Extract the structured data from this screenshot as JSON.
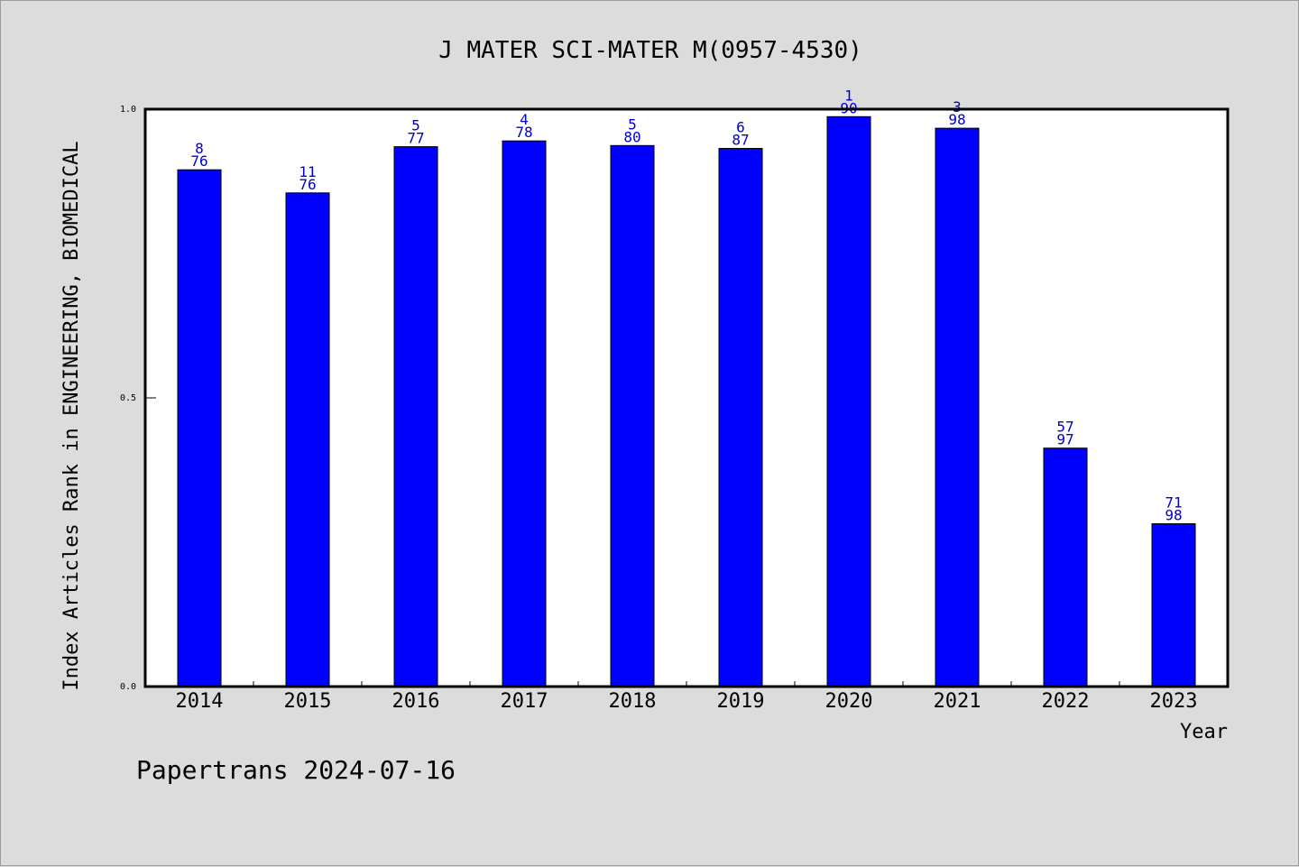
{
  "footer": "Papertrans 2024-07-16",
  "colors": {
    "background": "#dcdcdc",
    "plot_background": "#ffffff",
    "bar": "#0000ff",
    "bar_label": "#0000cc"
  },
  "chart_data": {
    "type": "bar",
    "title": "J MATER SCI-MATER M(0957-4530)",
    "xlabel": "Year",
    "ylabel": "Index Articles Rank in ENGINEERING, BIOMEDICAL",
    "ylim": [
      0,
      1
    ],
    "yticks": [
      "0.0",
      "0.5",
      "1.0"
    ],
    "grid": false,
    "categories": [
      "2014",
      "2015",
      "2016",
      "2017",
      "2018",
      "2019",
      "2020",
      "2021",
      "2022",
      "2023"
    ],
    "values": [
      0.895,
      0.855,
      0.935,
      0.945,
      0.937,
      0.932,
      0.987,
      0.967,
      0.413,
      0.282
    ],
    "rank_labels": [
      "8",
      "11",
      "5",
      "4",
      "5",
      "6",
      "1",
      "3",
      "57",
      "71"
    ],
    "total_labels": [
      "76",
      "76",
      "77",
      "78",
      "80",
      "87",
      "90",
      "98",
      "97",
      "98"
    ]
  }
}
